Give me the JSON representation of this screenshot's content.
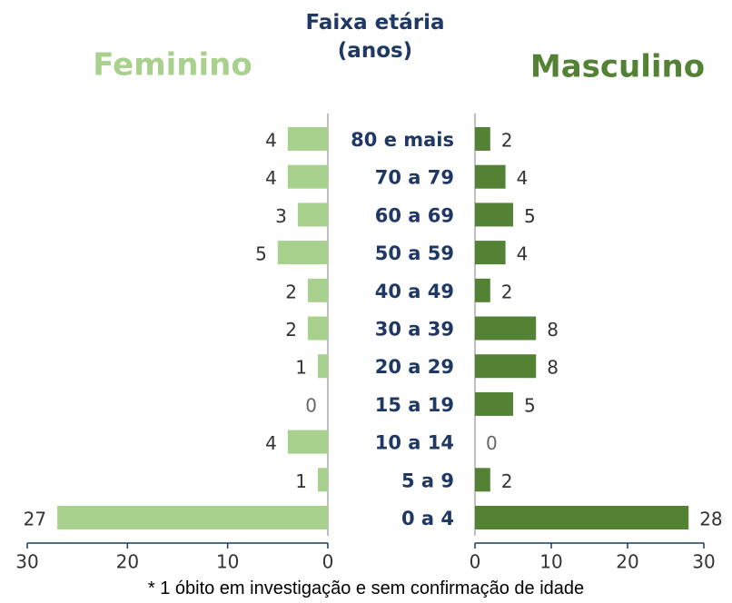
{
  "chart_data": {
    "type": "pyramid",
    "title": "Faixa etária (anos)",
    "categories": [
      "80 e mais",
      "70 a 79",
      "60 a 69",
      "50 a 59",
      "40 a 49",
      "30 a 39",
      "20 a 29",
      "15 a 19",
      "10 a 14",
      "5 a 9",
      "0 a 4"
    ],
    "series": [
      {
        "name": "Feminino",
        "color": "#a9d18e",
        "side": "left",
        "values": [
          4,
          4,
          3,
          5,
          2,
          2,
          1,
          0,
          4,
          1,
          27
        ]
      },
      {
        "name": "Masculino",
        "color": "#548235",
        "side": "right",
        "values": [
          2,
          4,
          5,
          4,
          2,
          8,
          8,
          5,
          0,
          2,
          28
        ]
      }
    ],
    "xlim": [
      0,
      30
    ],
    "xticks": [
      0,
      10,
      20,
      30
    ],
    "note": "* 1 óbito em investigação e sem confirmação de idade"
  }
}
